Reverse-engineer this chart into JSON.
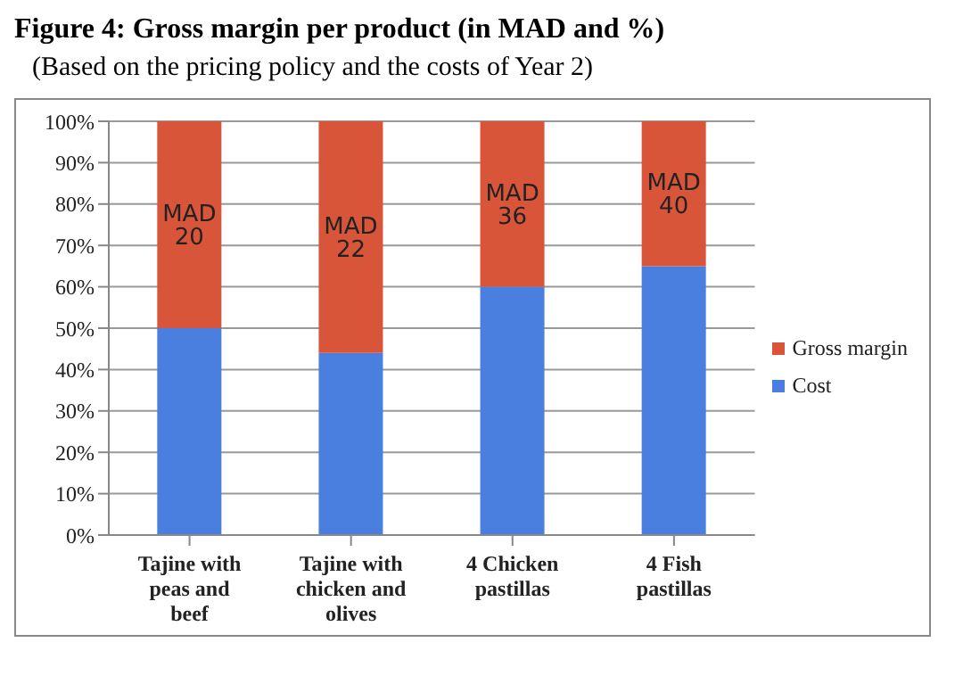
{
  "chart_data": {
    "type": "bar",
    "title": "Figure 4: Gross margin per product (in MAD and %)",
    "subtitle": "(Based on the pricing policy and the costs of Year 2)",
    "categories": [
      "Tajine with peas and beef",
      "Tajine with chicken and olives",
      "4 Chicken pastillas",
      "4 Fish pastillas"
    ],
    "series": [
      {
        "name": "Cost",
        "color": "#4a7fe0",
        "values": [
          50,
          44,
          60,
          65
        ]
      },
      {
        "name": "Gross margin",
        "color": "#d9553a",
        "values": [
          50,
          56,
          40,
          35
        ],
        "value_labels": [
          "MAD 20",
          "MAD 22",
          "MAD 36",
          "MAD 40"
        ]
      }
    ],
    "stacked": true,
    "ylim": [
      0,
      100
    ],
    "yticks": [
      {
        "value": 0,
        "label": "0%"
      },
      {
        "value": 10,
        "label": "10%"
      },
      {
        "value": 20,
        "label": "20%"
      },
      {
        "value": 30,
        "label": "30%"
      },
      {
        "value": 40,
        "label": "40%"
      },
      {
        "value": 50,
        "label": "50%"
      },
      {
        "value": 60,
        "label": "60%"
      },
      {
        "value": 70,
        "label": "70%"
      },
      {
        "value": 80,
        "label": "80%"
      },
      {
        "value": 90,
        "label": "90%"
      },
      {
        "value": 100,
        "label": "100%"
      }
    ],
    "grid": "y",
    "legend": "right"
  }
}
